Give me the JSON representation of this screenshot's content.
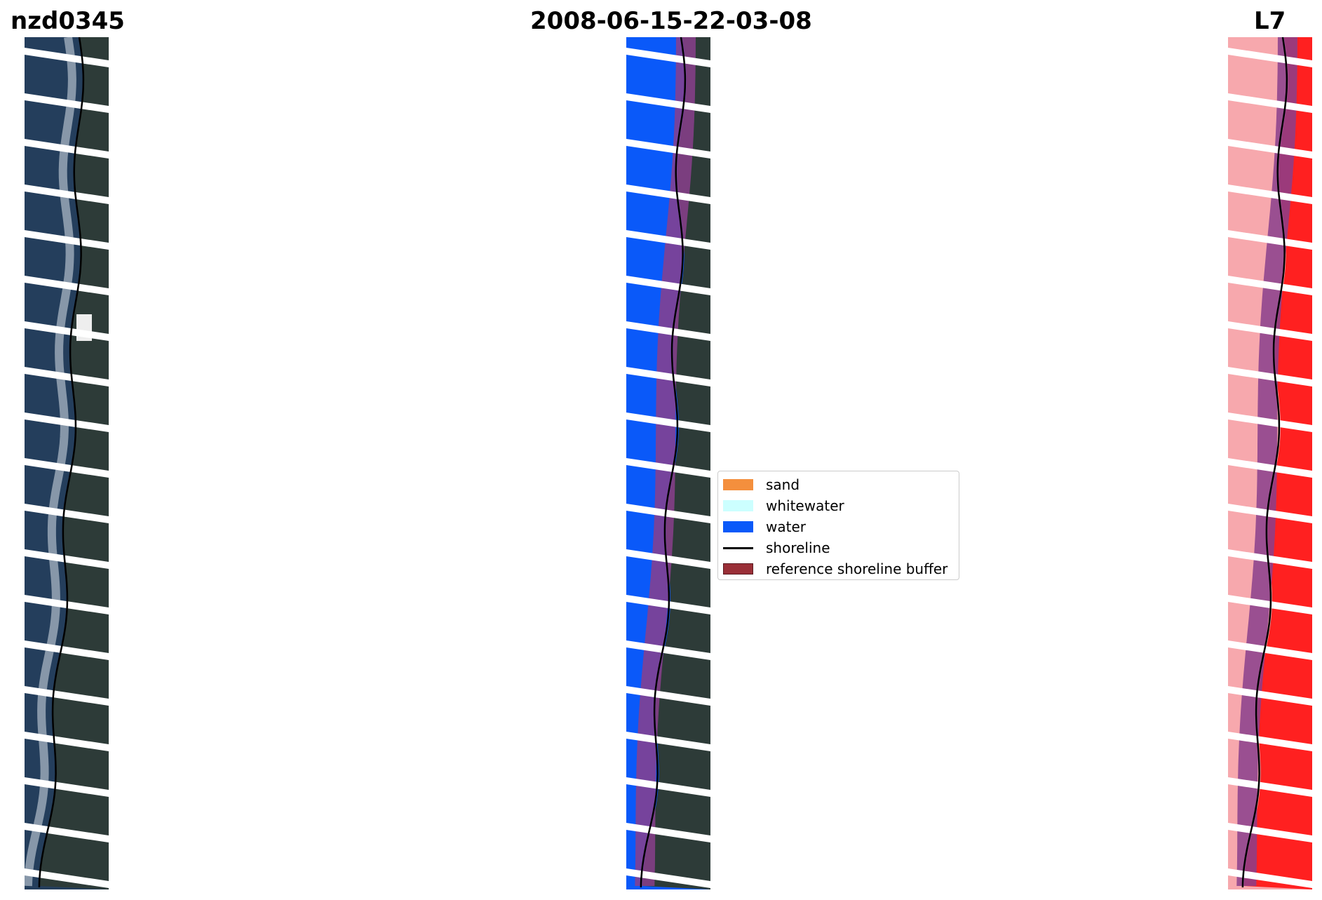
{
  "titles": {
    "site": "nzd0345",
    "date": "2008-06-15-22-03-08",
    "satellite": "L7"
  },
  "panels": {
    "left": {
      "name": "RGB satellite image with shoreline",
      "icon": "satellite-image"
    },
    "center": {
      "name": "Classified image with shoreline",
      "icon": "classified-image"
    },
    "right": {
      "name": "Water index image with shoreline",
      "icon": "index-image"
    }
  },
  "legend": {
    "items": [
      {
        "label": "sand",
        "color": "#f48f3d",
        "kind": "patch"
      },
      {
        "label": "whitewater",
        "color": "#ccffff",
        "kind": "patch"
      },
      {
        "label": "water",
        "color": "#0a59f9",
        "kind": "patch"
      },
      {
        "label": "shoreline",
        "color": "#000000",
        "kind": "line"
      },
      {
        "label": "reference shoreline buffer",
        "color": "#9a2f37",
        "kind": "patch"
      }
    ]
  },
  "colors": {
    "ocean": "#243e5c",
    "land": "#2d3b38",
    "classified_water": "#0a59f9",
    "buffer": "#8a3f8c",
    "index_light": "#f7a8ad",
    "index_red": "#ff2020",
    "shoreline": "#000000",
    "stripe_gap": "#ffffff"
  }
}
